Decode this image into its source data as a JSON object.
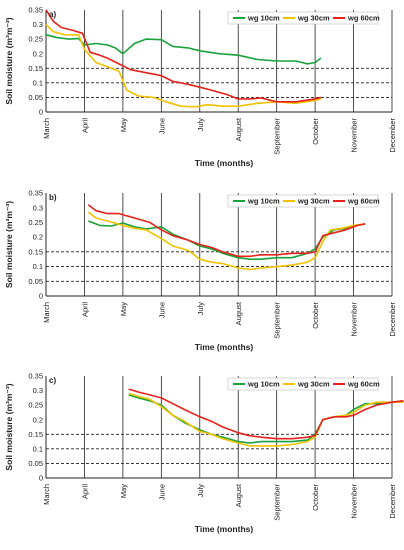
{
  "colors": {
    "wg10": "#1aa33c",
    "wg30": "#f2c200",
    "wg60": "#e8221b",
    "refline": "#222222",
    "grid": "#222222"
  },
  "chart_data": [
    {
      "type": "line",
      "panel_label": "a)",
      "categories": [
        "March",
        "April",
        "May",
        "June",
        "July",
        "August",
        "September",
        "October",
        "November",
        "December"
      ],
      "ylabel": "Soil moisture (m³m⁻³)",
      "xlabel": "Time (months)",
      "ylim": [
        0,
        0.35
      ],
      "yticks": [
        "0",
        "0.05",
        "0.1",
        "0.15",
        "0.2",
        "0.25",
        "0.3",
        "0.35"
      ],
      "reference_lines": [
        0.05,
        0.1,
        0.15
      ],
      "legend_position": "top-right",
      "series": [
        {
          "name": "wg 10cm",
          "color": "#1aa33c",
          "points": [
            [
              0.0,
              0.265
            ],
            [
              0.3,
              0.255
            ],
            [
              0.6,
              0.25
            ],
            [
              0.85,
              0.252
            ],
            [
              1.0,
              0.23
            ],
            [
              1.3,
              0.235
            ],
            [
              1.6,
              0.23
            ],
            [
              1.8,
              0.22
            ],
            [
              2.0,
              0.2
            ],
            [
              2.3,
              0.235
            ],
            [
              2.6,
              0.25
            ],
            [
              3.0,
              0.248
            ],
            [
              3.3,
              0.225
            ],
            [
              3.7,
              0.22
            ],
            [
              4.0,
              0.21
            ],
            [
              4.5,
              0.2
            ],
            [
              5.0,
              0.195
            ],
            [
              5.5,
              0.18
            ],
            [
              6.0,
              0.175
            ],
            [
              6.5,
              0.175
            ],
            [
              6.8,
              0.165
            ],
            [
              7.0,
              0.17
            ],
            [
              7.15,
              0.185
            ]
          ]
        },
        {
          "name": "wg 30cm",
          "color": "#f2c200",
          "points": [
            [
              0.0,
              0.3
            ],
            [
              0.2,
              0.275
            ],
            [
              0.5,
              0.265
            ],
            [
              0.85,
              0.265
            ],
            [
              1.0,
              0.215
            ],
            [
              1.3,
              0.17
            ],
            [
              1.6,
              0.155
            ],
            [
              1.9,
              0.14
            ],
            [
              2.1,
              0.075
            ],
            [
              2.4,
              0.055
            ],
            [
              2.8,
              0.05
            ],
            [
              3.0,
              0.04
            ],
            [
              3.5,
              0.02
            ],
            [
              3.9,
              0.018
            ],
            [
              4.2,
              0.025
            ],
            [
              4.6,
              0.02
            ],
            [
              5.0,
              0.02
            ],
            [
              5.5,
              0.03
            ],
            [
              6.0,
              0.035
            ],
            [
              6.5,
              0.03
            ],
            [
              7.0,
              0.04
            ],
            [
              7.15,
              0.045
            ]
          ]
        },
        {
          "name": "wg 60cm",
          "color": "#e8221b",
          "points": [
            [
              0.0,
              0.35
            ],
            [
              0.2,
              0.31
            ],
            [
              0.4,
              0.29
            ],
            [
              0.7,
              0.28
            ],
            [
              0.95,
              0.27
            ],
            [
              1.15,
              0.205
            ],
            [
              1.4,
              0.195
            ],
            [
              1.6,
              0.185
            ],
            [
              1.9,
              0.165
            ],
            [
              2.2,
              0.145
            ],
            [
              2.6,
              0.135
            ],
            [
              3.0,
              0.125
            ],
            [
              3.3,
              0.105
            ],
            [
              3.7,
              0.095
            ],
            [
              4.0,
              0.085
            ],
            [
              4.3,
              0.075
            ],
            [
              4.7,
              0.06
            ],
            [
              5.0,
              0.045
            ],
            [
              5.3,
              0.045
            ],
            [
              5.6,
              0.048
            ],
            [
              6.0,
              0.035
            ],
            [
              6.5,
              0.035
            ],
            [
              7.0,
              0.045
            ],
            [
              7.15,
              0.05
            ]
          ]
        }
      ]
    },
    {
      "type": "line",
      "panel_label": "b)",
      "categories": [
        "March",
        "April",
        "May",
        "June",
        "July",
        "August",
        "September",
        "October",
        "November",
        "December"
      ],
      "ylabel": "Soil moisture (m³m⁻³)",
      "xlabel": "Time (months)",
      "ylim": [
        0,
        0.35
      ],
      "yticks": [
        "0",
        "0.05",
        "0.1",
        "0.15",
        "0.2",
        "0.25",
        "0.3",
        "0.35"
      ],
      "reference_lines": [
        0.05,
        0.1,
        0.15
      ],
      "legend_position": "top-right",
      "series": [
        {
          "name": "wg 10cm",
          "color": "#1aa33c",
          "points": [
            [
              1.1,
              0.255
            ],
            [
              1.4,
              0.24
            ],
            [
              1.7,
              0.238
            ],
            [
              2.0,
              0.248
            ],
            [
              2.3,
              0.235
            ],
            [
              2.6,
              0.228
            ],
            [
              3.0,
              0.235
            ],
            [
              3.3,
              0.21
            ],
            [
              3.7,
              0.19
            ],
            [
              4.0,
              0.17
            ],
            [
              4.3,
              0.16
            ],
            [
              4.6,
              0.145
            ],
            [
              5.0,
              0.13
            ],
            [
              5.3,
              0.125
            ],
            [
              5.6,
              0.125
            ],
            [
              6.0,
              0.13
            ],
            [
              6.4,
              0.13
            ],
            [
              6.8,
              0.145
            ],
            [
              7.0,
              0.16
            ],
            [
              7.2,
              0.2
            ],
            [
              7.5,
              0.225
            ],
            [
              7.8,
              0.23
            ],
            [
              8.1,
              0.24
            ],
            [
              8.3,
              0.245
            ]
          ]
        },
        {
          "name": "wg 30cm",
          "color": "#f2c200",
          "points": [
            [
              1.1,
              0.285
            ],
            [
              1.3,
              0.265
            ],
            [
              1.6,
              0.255
            ],
            [
              2.0,
              0.24
            ],
            [
              2.3,
              0.23
            ],
            [
              2.6,
              0.225
            ],
            [
              3.0,
              0.195
            ],
            [
              3.3,
              0.17
            ],
            [
              3.7,
              0.155
            ],
            [
              4.0,
              0.125
            ],
            [
              4.3,
              0.115
            ],
            [
              4.6,
              0.11
            ],
            [
              5.0,
              0.095
            ],
            [
              5.3,
              0.09
            ],
            [
              5.6,
              0.095
            ],
            [
              6.0,
              0.1
            ],
            [
              6.4,
              0.105
            ],
            [
              6.8,
              0.115
            ],
            [
              7.0,
              0.13
            ],
            [
              7.2,
              0.185
            ],
            [
              7.4,
              0.225
            ],
            [
              7.7,
              0.23
            ],
            [
              8.0,
              0.24
            ],
            [
              8.3,
              0.245
            ]
          ]
        },
        {
          "name": "wg 60cm",
          "color": "#e8221b",
          "points": [
            [
              1.1,
              0.31
            ],
            [
              1.3,
              0.29
            ],
            [
              1.6,
              0.28
            ],
            [
              1.9,
              0.28
            ],
            [
              2.3,
              0.265
            ],
            [
              2.7,
              0.25
            ],
            [
              3.0,
              0.225
            ],
            [
              3.3,
              0.205
            ],
            [
              3.7,
              0.19
            ],
            [
              4.0,
              0.175
            ],
            [
              4.3,
              0.165
            ],
            [
              4.6,
              0.15
            ],
            [
              5.0,
              0.135
            ],
            [
              5.3,
              0.135
            ],
            [
              5.6,
              0.14
            ],
            [
              6.0,
              0.14
            ],
            [
              6.4,
              0.145
            ],
            [
              6.8,
              0.145
            ],
            [
              7.0,
              0.15
            ],
            [
              7.2,
              0.205
            ],
            [
              7.5,
              0.215
            ],
            [
              7.8,
              0.225
            ],
            [
              8.1,
              0.24
            ],
            [
              8.3,
              0.245
            ]
          ]
        }
      ]
    },
    {
      "type": "line",
      "panel_label": "c)",
      "categories": [
        "March",
        "April",
        "May",
        "June",
        "July",
        "August",
        "September",
        "October",
        "November",
        "December"
      ],
      "ylabel": "Soil moisture (m³m⁻³)",
      "xlabel": "Time (months)",
      "ylim": [
        0,
        0.35
      ],
      "yticks": [
        "0",
        "0.05",
        "0.1",
        "0.15",
        "0.2",
        "0.25",
        "0.3",
        "0.35"
      ],
      "reference_lines": [
        0.05,
        0.1,
        0.15
      ],
      "legend_position": "top-right",
      "series": [
        {
          "name": "wg 10cm",
          "color": "#1aa33c",
          "points": [
            [
              2.15,
              0.285
            ],
            [
              2.4,
              0.275
            ],
            [
              2.7,
              0.265
            ],
            [
              3.0,
              0.25
            ],
            [
              3.3,
              0.215
            ],
            [
              3.6,
              0.19
            ],
            [
              4.0,
              0.165
            ],
            [
              4.3,
              0.15
            ],
            [
              4.6,
              0.14
            ],
            [
              5.0,
              0.125
            ],
            [
              5.3,
              0.12
            ],
            [
              5.6,
              0.125
            ],
            [
              6.0,
              0.125
            ],
            [
              6.4,
              0.125
            ],
            [
              6.8,
              0.13
            ],
            [
              7.0,
              0.15
            ],
            [
              7.2,
              0.2
            ],
            [
              7.5,
              0.21
            ],
            [
              7.8,
              0.215
            ],
            [
              8.0,
              0.235
            ],
            [
              8.3,
              0.255
            ],
            [
              8.6,
              0.255
            ],
            [
              9.0,
              0.26
            ],
            [
              9.3,
              0.265
            ]
          ]
        },
        {
          "name": "wg 30cm",
          "color": "#f2c200",
          "points": [
            [
              2.15,
              0.29
            ],
            [
              2.4,
              0.28
            ],
            [
              2.7,
              0.27
            ],
            [
              3.0,
              0.245
            ],
            [
              3.3,
              0.215
            ],
            [
              3.6,
              0.195
            ],
            [
              4.0,
              0.16
            ],
            [
              4.3,
              0.15
            ],
            [
              4.6,
              0.135
            ],
            [
              5.0,
              0.12
            ],
            [
              5.3,
              0.11
            ],
            [
              5.6,
              0.11
            ],
            [
              6.0,
              0.11
            ],
            [
              6.4,
              0.115
            ],
            [
              6.8,
              0.125
            ],
            [
              7.0,
              0.14
            ],
            [
              7.2,
              0.2
            ],
            [
              7.5,
              0.21
            ],
            [
              7.8,
              0.215
            ],
            [
              8.0,
              0.225
            ],
            [
              8.3,
              0.25
            ],
            [
              8.6,
              0.26
            ],
            [
              9.0,
              0.26
            ],
            [
              9.3,
              0.26
            ]
          ]
        },
        {
          "name": "wg 60cm",
          "color": "#e8221b",
          "points": [
            [
              2.15,
              0.305
            ],
            [
              2.4,
              0.295
            ],
            [
              2.7,
              0.285
            ],
            [
              3.0,
              0.275
            ],
            [
              3.3,
              0.255
            ],
            [
              3.6,
              0.235
            ],
            [
              4.0,
              0.21
            ],
            [
              4.3,
              0.195
            ],
            [
              4.6,
              0.175
            ],
            [
              5.0,
              0.155
            ],
            [
              5.3,
              0.145
            ],
            [
              5.6,
              0.14
            ],
            [
              6.0,
              0.135
            ],
            [
              6.4,
              0.135
            ],
            [
              6.8,
              0.14
            ],
            [
              7.0,
              0.145
            ],
            [
              7.2,
              0.2
            ],
            [
              7.5,
              0.21
            ],
            [
              7.8,
              0.21
            ],
            [
              8.0,
              0.215
            ],
            [
              8.3,
              0.235
            ],
            [
              8.6,
              0.25
            ],
            [
              9.0,
              0.26
            ],
            [
              9.3,
              0.265
            ]
          ]
        }
      ]
    }
  ]
}
